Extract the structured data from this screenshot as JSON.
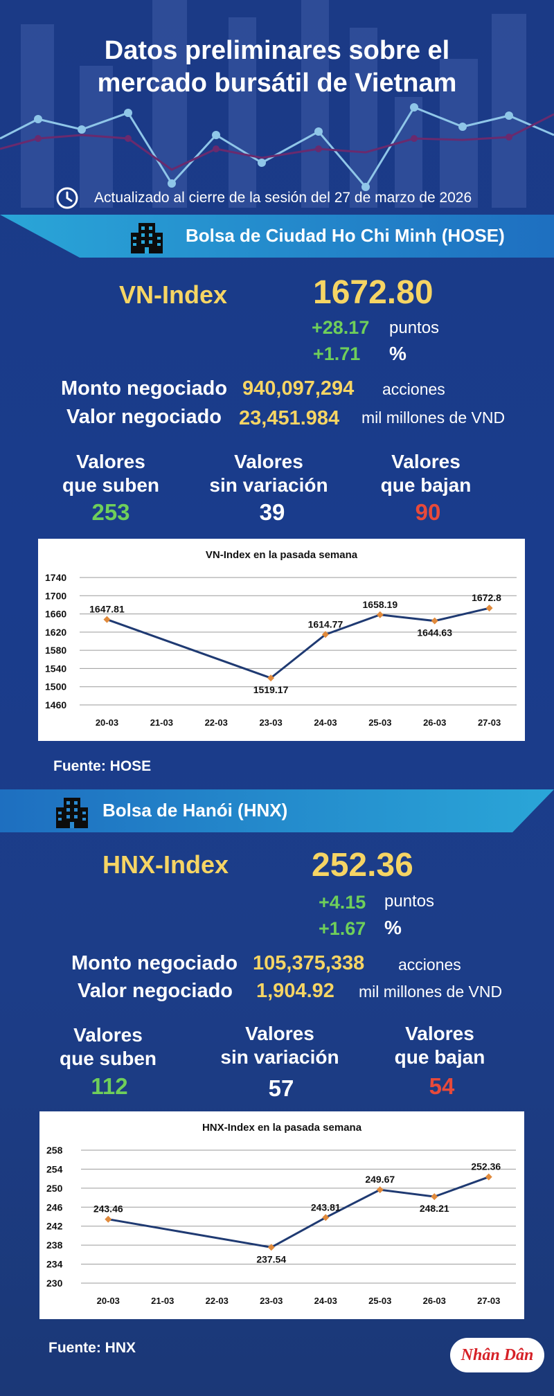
{
  "header": {
    "title_line1": "Datos preliminares sobre el",
    "title_line2": "mercado bursátil de Vietnam",
    "updated": "Actualizado al cierre de la sesión del 27 de marzo de 2026"
  },
  "icons": {
    "clock": "clock-icon",
    "building": "building-icon"
  },
  "colors": {
    "accent_yellow": "#f6d564",
    "up_green": "#6fcf5a",
    "down_red": "#e84a3a",
    "chart_line": "#1f3a72",
    "chart_marker": "#e08a3c"
  },
  "hose": {
    "exchange": "Bolsa de Ciudad Ho Chi Minh (HOSE)",
    "index_name": "VN-Index",
    "index_value": "1672.80",
    "change_points": "+28.17",
    "points_label": "puntos",
    "change_percent": "+1.71",
    "percent_label": "%",
    "volume_label": "Monto negociado",
    "volume_value": "940,097,294",
    "volume_unit": "acciones",
    "turnover_label": "Valor negociado",
    "turnover_value": "23,451.984",
    "turnover_unit": "mil millones de VND",
    "up_line1": "Valores",
    "up_line2": "que suben",
    "up_count": "253",
    "flat_line1": "Valores",
    "flat_line2": "sin variación",
    "flat_count": "39",
    "down_line1": "Valores",
    "down_line2": "que bajan",
    "down_count": "90",
    "source": "Fuente: HOSE"
  },
  "hnx": {
    "exchange": "Bolsa de Hanói (HNX)",
    "index_name": "HNX-Index",
    "index_value": "252.36",
    "change_points": "+4.15",
    "points_label": "puntos",
    "change_percent": "+1.67",
    "percent_label": "%",
    "volume_label": "Monto negociado",
    "volume_value": "105,375,338",
    "volume_unit": "acciones",
    "turnover_label": "Valor negociado",
    "turnover_value": "1,904.92",
    "turnover_unit": "mil millones de VND",
    "up_line1": "Valores",
    "up_line2": "que suben",
    "up_count": "112",
    "flat_line1": "Valores",
    "flat_line2": "sin variación",
    "flat_count": "57",
    "down_line1": "Valores",
    "down_line2": "que bajan",
    "down_count": "54",
    "source": "Fuente:  HNX"
  },
  "logo": {
    "text": "Nhân Dân"
  },
  "chart_data": [
    {
      "type": "line",
      "title": "VN-Index en la pasada semana",
      "categories": [
        "20-03",
        "21-03",
        "22-03",
        "23-03",
        "24-03",
        "25-03",
        "26-03",
        "27-03"
      ],
      "points": [
        {
          "x": "20-03",
          "y": 1647.81,
          "label": "1647.81"
        },
        {
          "x": "23-03",
          "y": 1519.17,
          "label": "1519.17"
        },
        {
          "x": "24-03",
          "y": 1614.77,
          "label": "1614.77"
        },
        {
          "x": "25-03",
          "y": 1658.19,
          "label": "1658.19"
        },
        {
          "x": "26-03",
          "y": 1644.63,
          "label": "1644.63"
        },
        {
          "x": "27-03",
          "y": 1672.8,
          "label": "1672.8"
        }
      ],
      "yticks": [
        1460,
        1500,
        1540,
        1580,
        1620,
        1660,
        1700,
        1740
      ],
      "ylim": [
        1460,
        1740
      ],
      "grid": true
    },
    {
      "type": "line",
      "title": "HNX-Index en la pasada semana",
      "categories": [
        "20-03",
        "21-03",
        "22-03",
        "23-03",
        "24-03",
        "25-03",
        "26-03",
        "27-03"
      ],
      "points": [
        {
          "x": "20-03",
          "y": 243.46,
          "label": "243.46"
        },
        {
          "x": "23-03",
          "y": 237.54,
          "label": "237.54"
        },
        {
          "x": "24-03",
          "y": 243.81,
          "label": "243.81"
        },
        {
          "x": "25-03",
          "y": 249.67,
          "label": "249.67"
        },
        {
          "x": "26-03",
          "y": 248.21,
          "label": "248.21"
        },
        {
          "x": "27-03",
          "y": 252.36,
          "label": "252.36"
        }
      ],
      "yticks": [
        230,
        234,
        238,
        242,
        246,
        250,
        254,
        258
      ],
      "ylim": [
        230,
        258
      ],
      "grid": true
    }
  ]
}
